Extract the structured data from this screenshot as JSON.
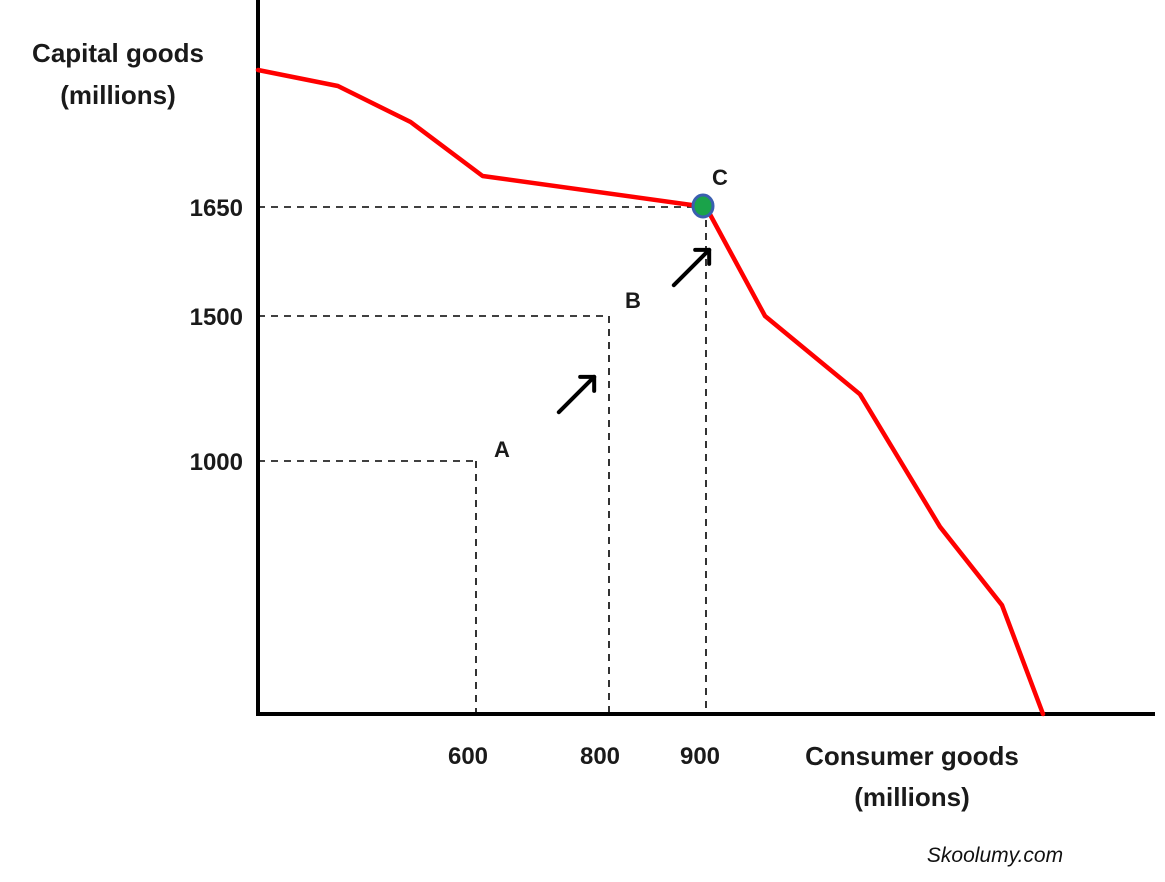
{
  "chart_data": {
    "type": "line",
    "title": "",
    "ylabel_lines": [
      "Capital goods",
      "(millions)"
    ],
    "xlabel_lines": [
      "Consumer goods",
      "(millions)"
    ],
    "x_ticks": [
      {
        "label": "600",
        "value": 600
      },
      {
        "label": "800",
        "value": 800
      },
      {
        "label": "900",
        "value": 900
      }
    ],
    "y_ticks": [
      {
        "label": "1000",
        "value": 1000
      },
      {
        "label": "1500",
        "value": 1500
      },
      {
        "label": "1650",
        "value": 1650
      }
    ],
    "series": [
      {
        "color": "#ff0000",
        "x": [
          0,
          220,
          420,
          610,
          900,
          1050,
          1240,
          1460,
          1530,
          1660
        ],
        "y": [
          2600,
          2540,
          2410,
          2200,
          1650,
          1500,
          1230,
          740,
          430,
          0
        ]
      }
    ],
    "points": [
      {
        "label": "A",
        "x": 600,
        "y": 1000,
        "highlighted": false
      },
      {
        "label": "B",
        "x": 800,
        "y": 1500,
        "highlighted": false
      },
      {
        "label": "C",
        "x": 900,
        "y": 1650,
        "highlighted": true,
        "marker_color": "#1aa34a",
        "marker_edge": "#3a5fb0"
      }
    ],
    "arrows": [
      {
        "from": "A",
        "to": "B"
      },
      {
        "from": "B",
        "to": "C"
      }
    ],
    "watermark": "Skoolumy.com"
  }
}
